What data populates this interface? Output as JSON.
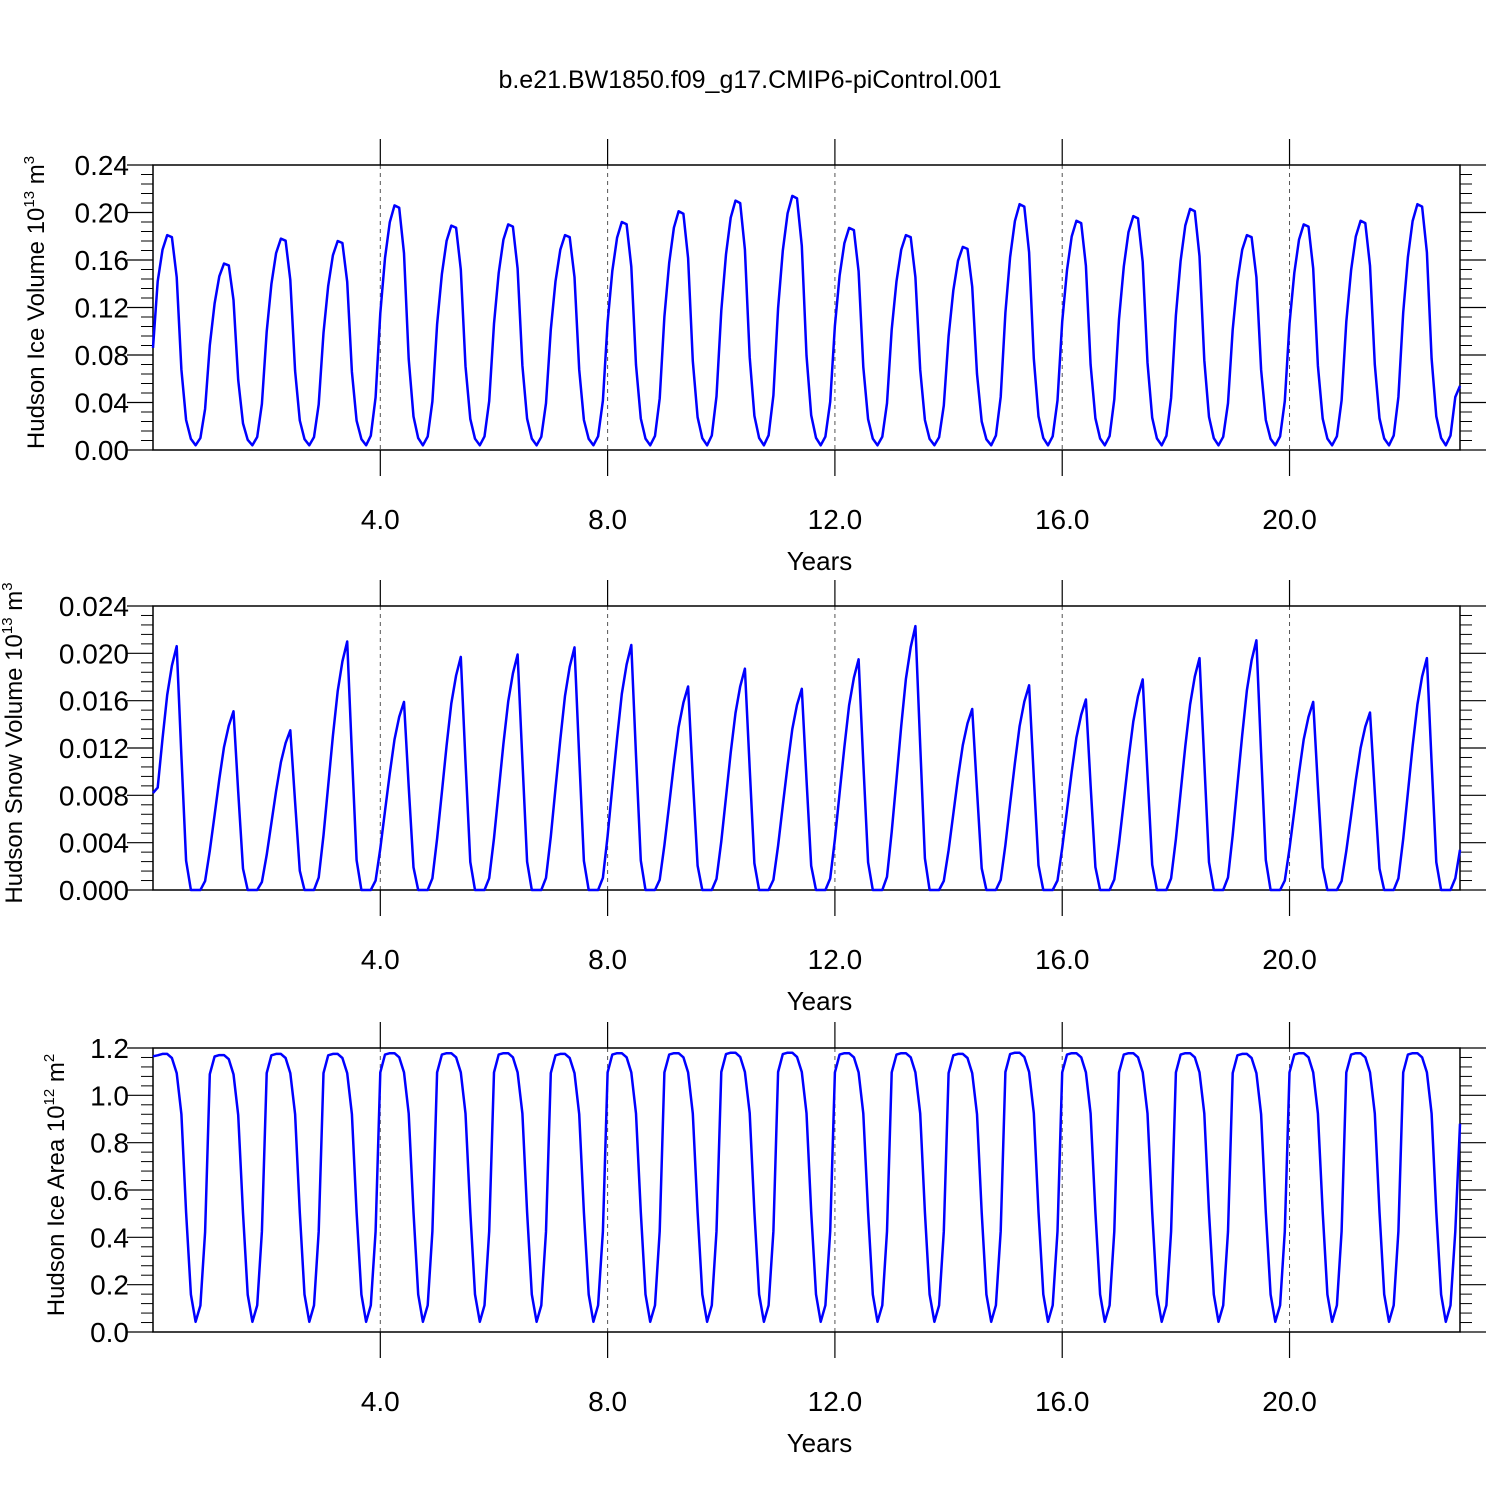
{
  "title": "b.e21.BW1850.f09_g17.CMIP6-piControl.001",
  "colors": {
    "series": "#0000ff",
    "axes": "#000000",
    "gridline": "#555555"
  },
  "chart_data": [
    {
      "type": "line",
      "ylabel": "Hudson Ice Volume 10",
      "ylabel_exp": "13",
      "ylabel_unit": " m",
      "ylabel_unit_exp": "3",
      "xlabel": "Years",
      "xlim": [
        0,
        23.0
      ],
      "ylim": [
        0,
        0.24
      ],
      "yticks": [
        0,
        0.04,
        0.08,
        0.12,
        0.16,
        0.2,
        0.24
      ],
      "ytick_labels": [
        "0.00",
        "0.04",
        "0.08",
        "0.12",
        "0.16",
        "0.20",
        "0.24"
      ],
      "xticks": [
        4,
        8,
        12,
        16,
        20
      ],
      "xtick_labels": [
        "4.0",
        "8.0",
        "12.0",
        "16.0",
        "20.0"
      ],
      "vgrid_dashed": true,
      "series": [
        {
          "peaks": [
            0.181,
            0.157,
            0.178,
            0.176,
            0.206,
            0.189,
            0.19,
            0.181,
            0.192,
            0.201,
            0.21,
            0.214,
            0.187,
            0.181,
            0.171,
            0.207,
            0.193,
            0.197,
            0.203,
            0.181,
            0.19,
            0.193,
            0.207
          ],
          "min": 0.004,
          "start": 0.086,
          "end": 0.054
        }
      ]
    },
    {
      "type": "line",
      "ylabel": "Hudson Snow Volume 10",
      "ylabel_exp": "13",
      "ylabel_unit": " m",
      "ylabel_unit_exp": "3",
      "xlabel": "Years",
      "xlim": [
        0,
        23.0
      ],
      "ylim": [
        0,
        0.024
      ],
      "yticks": [
        0,
        0.004,
        0.008,
        0.012,
        0.016,
        0.02,
        0.024
      ],
      "ytick_labels": [
        "0.000",
        "0.004",
        "0.008",
        "0.012",
        "0.016",
        "0.020",
        "0.024"
      ],
      "xticks": [
        4,
        8,
        12,
        16,
        20
      ],
      "xtick_labels": [
        "4.0",
        "8.0",
        "12.0",
        "16.0",
        "20.0"
      ],
      "vgrid_dashed": true,
      "series": [
        {
          "peaks": [
            0.0206,
            0.0151,
            0.0135,
            0.021,
            0.0159,
            0.0197,
            0.0199,
            0.0205,
            0.0207,
            0.0172,
            0.0187,
            0.017,
            0.0195,
            0.0223,
            0.0153,
            0.0173,
            0.0161,
            0.0178,
            0.0196,
            0.0211,
            0.0159,
            0.015,
            0.0196
          ],
          "min": 0.0,
          "start": 0.0082,
          "end": 0.0034
        }
      ]
    },
    {
      "type": "line",
      "ylabel": "Hudson Ice Area 10",
      "ylabel_exp": "12",
      "ylabel_unit": " m",
      "ylabel_unit_exp": "2",
      "xlabel": "Years",
      "xlim": [
        0,
        23.0
      ],
      "ylim": [
        0,
        1.2
      ],
      "yticks": [
        0,
        0.2,
        0.4,
        0.6,
        0.8,
        1.0,
        1.2
      ],
      "ytick_labels": [
        "0.0",
        "0.2",
        "0.4",
        "0.6",
        "0.8",
        "1.0",
        "1.2"
      ],
      "xticks": [
        4,
        8,
        12,
        16,
        20
      ],
      "xtick_labels": [
        "4.0",
        "8.0",
        "12.0",
        "16.0",
        "20.0"
      ],
      "vgrid_dashed": true,
      "series": [
        {
          "peaks": [
            1.175,
            1.17,
            1.175,
            1.175,
            1.178,
            1.178,
            1.178,
            1.175,
            1.178,
            1.178,
            1.18,
            1.18,
            1.178,
            1.178,
            1.175,
            1.18,
            1.178,
            1.178,
            1.178,
            1.175,
            1.178,
            1.178,
            1.178
          ],
          "min": 0.02,
          "start": 1.165,
          "end": 0.88
        }
      ]
    }
  ]
}
